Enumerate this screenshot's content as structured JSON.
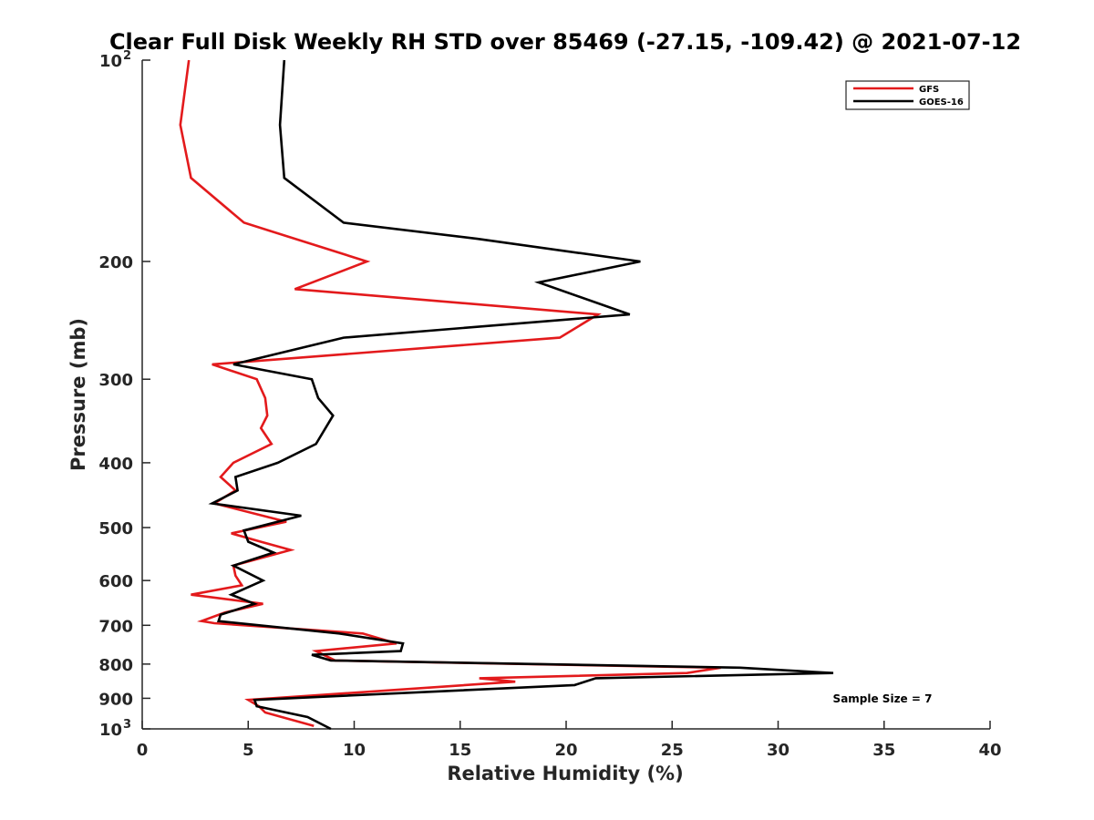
{
  "chart_data": {
    "type": "line",
    "title": "Clear Full Disk Weekly RH STD over 85469 (-27.15, -109.42) @ 2021-07-12",
    "xlabel": "Relative Humidity (%)",
    "ylabel": "Pressure (mb)",
    "xlim": [
      0,
      40
    ],
    "ylim": [
      100,
      1000
    ],
    "yscale": "log",
    "y_reversed": true,
    "x_ticks": [
      "0",
      "5",
      "10",
      "15",
      "20",
      "25",
      "30",
      "35",
      "40"
    ],
    "y_ticks": [
      {
        "value": 100,
        "label": "10",
        "sup": "2"
      },
      {
        "value": 200,
        "label": "200"
      },
      {
        "value": 300,
        "label": "300"
      },
      {
        "value": 400,
        "label": "400"
      },
      {
        "value": 500,
        "label": "500"
      },
      {
        "value": 600,
        "label": "600"
      },
      {
        "value": 700,
        "label": "700"
      },
      {
        "value": 800,
        "label": "800"
      },
      {
        "value": 900,
        "label": "900"
      },
      {
        "value": 1000,
        "label": "10",
        "sup": "3"
      }
    ],
    "legend_position": "top-right",
    "annotation": "Sample Size = 7",
    "series": [
      {
        "name": "GFS",
        "color": "#e31a1c",
        "points": [
          [
            2.2,
            100
          ],
          [
            1.8,
            125
          ],
          [
            2.3,
            150
          ],
          [
            4.8,
            175
          ],
          [
            10.6,
            200
          ],
          [
            7.2,
            220
          ],
          [
            21.5,
            240
          ],
          [
            19.7,
            260
          ],
          [
            3.3,
            285
          ],
          [
            5.4,
            300
          ],
          [
            5.8,
            320
          ],
          [
            5.9,
            340
          ],
          [
            5.6,
            355
          ],
          [
            6.1,
            375
          ],
          [
            4.3,
            400
          ],
          [
            3.7,
            420
          ],
          [
            4.4,
            440
          ],
          [
            3.4,
            460
          ],
          [
            6.8,
            490
          ],
          [
            4.2,
            510
          ],
          [
            5.6,
            525
          ],
          [
            7.0,
            540
          ],
          [
            4.3,
            570
          ],
          [
            4.4,
            590
          ],
          [
            4.7,
            610
          ],
          [
            2.3,
            630
          ],
          [
            5.7,
            650
          ],
          [
            3.9,
            670
          ],
          [
            2.8,
            690
          ],
          [
            3.4,
            695
          ],
          [
            10.4,
            720
          ],
          [
            12.0,
            745
          ],
          [
            8.2,
            765
          ],
          [
            9.1,
            790
          ],
          [
            27.3,
            810
          ],
          [
            25.7,
            825
          ],
          [
            15.9,
            840
          ],
          [
            17.6,
            850
          ],
          [
            5.0,
            905
          ],
          [
            5.5,
            925
          ],
          [
            5.8,
            945
          ],
          [
            8.1,
            990
          ]
        ]
      },
      {
        "name": "GOES-16",
        "color": "#000000",
        "points": [
          [
            6.7,
            100
          ],
          [
            6.5,
            125
          ],
          [
            6.7,
            150
          ],
          [
            9.5,
            175
          ],
          [
            15.8,
            185
          ],
          [
            23.5,
            200
          ],
          [
            18.7,
            215
          ],
          [
            23.0,
            240
          ],
          [
            9.5,
            260
          ],
          [
            4.3,
            285
          ],
          [
            8.0,
            300
          ],
          [
            8.3,
            320
          ],
          [
            9.0,
            340
          ],
          [
            8.2,
            375
          ],
          [
            6.4,
            400
          ],
          [
            4.4,
            420
          ],
          [
            4.5,
            440
          ],
          [
            3.3,
            460
          ],
          [
            7.5,
            480
          ],
          [
            4.8,
            505
          ],
          [
            5.0,
            525
          ],
          [
            6.2,
            545
          ],
          [
            4.3,
            570
          ],
          [
            5.7,
            600
          ],
          [
            4.2,
            630
          ],
          [
            5.3,
            650
          ],
          [
            3.7,
            675
          ],
          [
            3.6,
            690
          ],
          [
            9.3,
            720
          ],
          [
            12.3,
            745
          ],
          [
            12.2,
            765
          ],
          [
            8.0,
            775
          ],
          [
            8.9,
            790
          ],
          [
            28.2,
            810
          ],
          [
            32.6,
            825
          ],
          [
            21.4,
            840
          ],
          [
            20.4,
            860
          ],
          [
            5.3,
            905
          ],
          [
            5.4,
            925
          ],
          [
            7.8,
            960
          ],
          [
            8.9,
            1000
          ]
        ]
      }
    ]
  }
}
